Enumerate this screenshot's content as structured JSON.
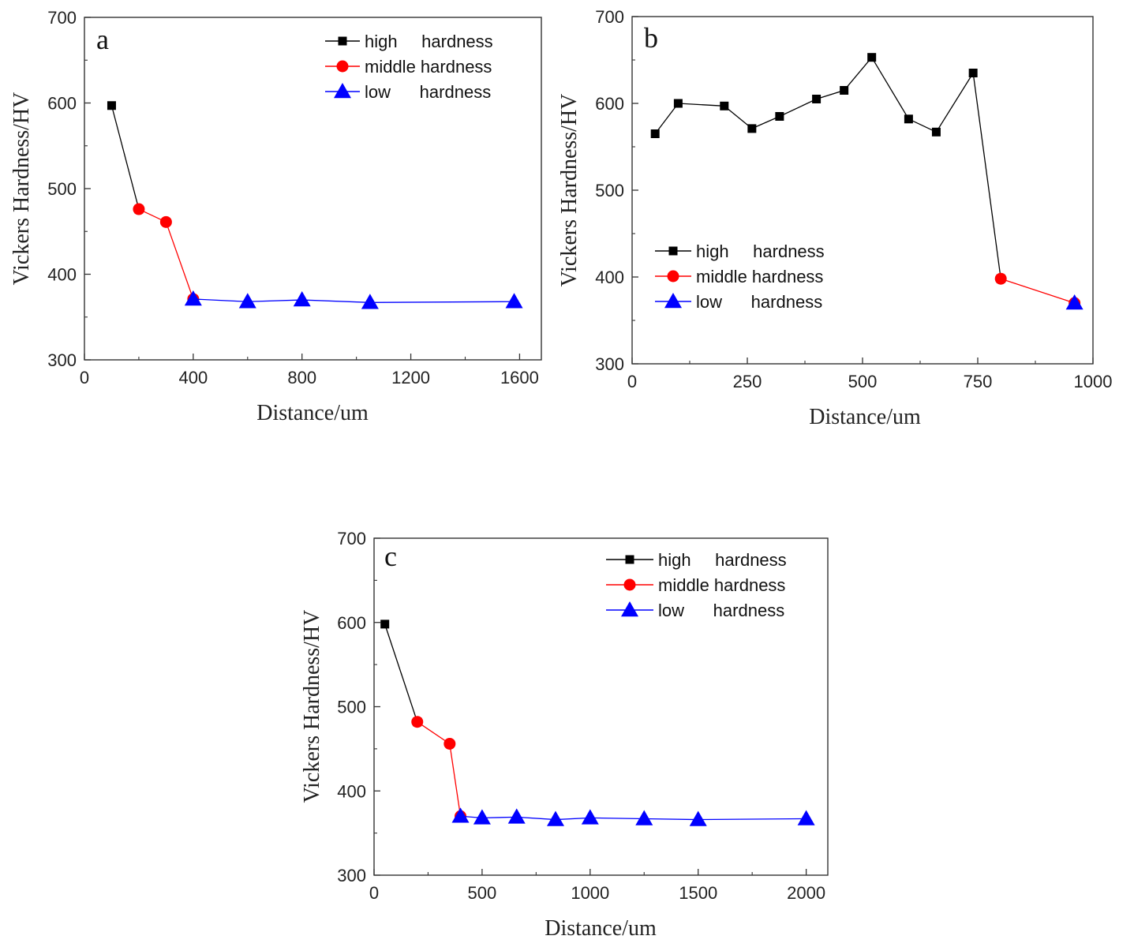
{
  "chart_data": [
    {
      "type": "line",
      "panel_label": "a",
      "xlabel": "Distance/um",
      "ylabel": "Vickers Hardness/HV",
      "xlim": [
        0,
        1680
      ],
      "ylim": [
        300,
        700
      ],
      "xticks": [
        0,
        400,
        800,
        1200,
        1600
      ],
      "yticks": [
        300,
        400,
        500,
        600,
        700
      ],
      "legend_position": "top-right",
      "series": [
        {
          "name": "high     hardness",
          "color": "#000000",
          "marker": "square",
          "x": [
            100,
            200
          ],
          "y": [
            597,
            476
          ]
        },
        {
          "name": "middle hardness",
          "color": "#ff0000",
          "marker": "circle",
          "x": [
            200,
            300,
            400
          ],
          "y": [
            476,
            461,
            371
          ]
        },
        {
          "name": "low      hardness",
          "color": "#0000ff",
          "marker": "triangle",
          "x": [
            400,
            600,
            800,
            1050,
            1580
          ],
          "y": [
            371,
            368,
            370,
            367,
            368
          ]
        }
      ]
    },
    {
      "type": "line",
      "panel_label": "b",
      "xlabel": "Distance/um",
      "ylabel": "Vickers Hardness/HV",
      "xlim": [
        0,
        1000
      ],
      "ylim": [
        300,
        700
      ],
      "xticks": [
        0,
        250,
        500,
        750,
        1000
      ],
      "yticks": [
        300,
        400,
        500,
        600,
        700
      ],
      "legend_position": "middle-left",
      "series": [
        {
          "name": "high     hardness",
          "color": "#000000",
          "marker": "square",
          "x": [
            50,
            100,
            200,
            260,
            320,
            400,
            460,
            520,
            600,
            660,
            740,
            800
          ],
          "y": [
            565,
            600,
            597,
            571,
            585,
            605,
            615,
            653,
            582,
            567,
            635,
            398
          ]
        },
        {
          "name": "middle hardness",
          "color": "#ff0000",
          "marker": "circle",
          "x": [
            800,
            960
          ],
          "y": [
            398,
            370
          ]
        },
        {
          "name": "low      hardness",
          "color": "#0000ff",
          "marker": "triangle",
          "x": [
            960
          ],
          "y": [
            370
          ]
        }
      ]
    },
    {
      "type": "line",
      "panel_label": "c",
      "xlabel": "Distance/um",
      "ylabel": "Vickers Hardness/HV",
      "xlim": [
        0,
        2100
      ],
      "ylim": [
        300,
        700
      ],
      "xticks": [
        0,
        500,
        1000,
        1500,
        2000
      ],
      "yticks": [
        300,
        400,
        500,
        600,
        700
      ],
      "legend_position": "top-right",
      "series": [
        {
          "name": "high     hardness",
          "color": "#000000",
          "marker": "square",
          "x": [
            50,
            200
          ],
          "y": [
            598,
            482
          ]
        },
        {
          "name": "middle hardness",
          "color": "#ff0000",
          "marker": "circle",
          "x": [
            200,
            350,
            400
          ],
          "y": [
            482,
            456,
            370
          ]
        },
        {
          "name": "low      hardness",
          "color": "#0000ff",
          "marker": "triangle",
          "x": [
            400,
            500,
            660,
            840,
            1000,
            1250,
            1500,
            2000
          ],
          "y": [
            370,
            368,
            369,
            366,
            368,
            367,
            366,
            367
          ]
        }
      ]
    }
  ]
}
